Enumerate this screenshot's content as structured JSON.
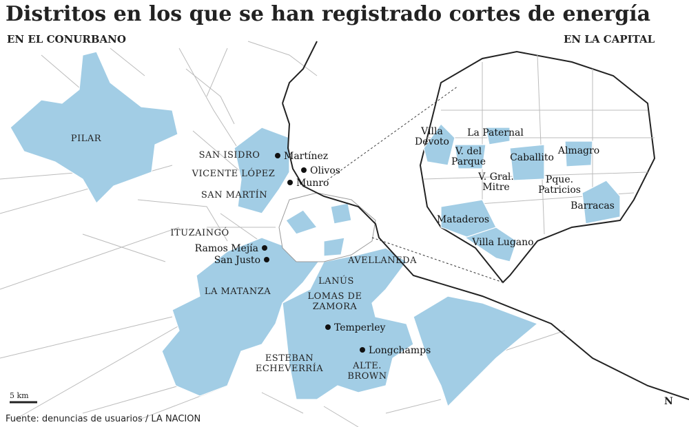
{
  "title": "Distritos en los que se han registrado cortes de energía",
  "sections": {
    "conurbano": "EN EL CONURBANO",
    "capital": "EN LA CAPITAL"
  },
  "districts": [
    {
      "lines": [
        "PILAR"
      ]
    },
    {
      "lines": [
        "SAN ISIDRO"
      ]
    },
    {
      "lines": [
        "VICENTE LÓPEZ"
      ]
    },
    {
      "lines": [
        "SAN MARTÍN"
      ]
    },
    {
      "lines": [
        "ITUZAINGÓ"
      ]
    },
    {
      "lines": [
        "LA MATANZA"
      ]
    },
    {
      "lines": [
        "AVELLANEDA"
      ]
    },
    {
      "lines": [
        "LANÚS"
      ]
    },
    {
      "lines": [
        "LOMAS DE",
        "ZAMORA"
      ]
    },
    {
      "lines": [
        "ESTEBAN",
        "ECHEVERRÍA"
      ]
    },
    {
      "lines": [
        "ALTE.",
        "BROWN"
      ]
    }
  ],
  "places": [
    "Martínez",
    "Olivos",
    "Munro",
    "Ramos Mejía",
    "San Justo",
    "Temperley",
    "Longchamps"
  ],
  "barrios": [
    {
      "lines": [
        "Villa",
        "Devoto"
      ]
    },
    {
      "lines": [
        "La Paternal"
      ]
    },
    {
      "lines": [
        "V. del",
        "Parque"
      ]
    },
    {
      "lines": [
        "Caballito"
      ]
    },
    {
      "lines": [
        "Almagro"
      ]
    },
    {
      "lines": [
        "V. Gral.",
        "Mitre"
      ]
    },
    {
      "lines": [
        "Pque.",
        "Patricios"
      ]
    },
    {
      "lines": [
        "Barracas"
      ]
    },
    {
      "lines": [
        "Mataderos"
      ]
    },
    {
      "lines": [
        "Villa Lugano"
      ]
    }
  ],
  "scale": "5 km",
  "north": "N",
  "source": "Fuente: denuncias de usuarios / LA NACION"
}
